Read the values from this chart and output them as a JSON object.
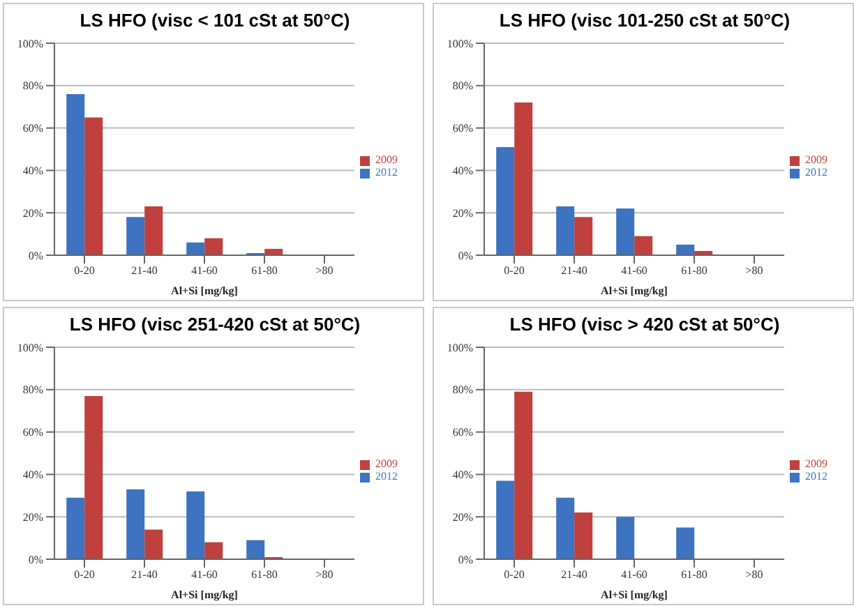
{
  "chart_data": [
    {
      "type": "bar",
      "title": "LS HFO (visc < 101 cSt at 50°C)",
      "xlabel": "Al+Si [mg/kg]",
      "categories": [
        "0-20",
        "21-40",
        "41-60",
        "61-80",
        ">80"
      ],
      "series": [
        {
          "name": "2012",
          "color": "#3d73c0",
          "values": [
            76,
            18,
            6,
            1,
            0
          ]
        },
        {
          "name": "2009",
          "color": "#c0403d",
          "values": [
            65,
            23,
            8,
            3,
            0
          ]
        }
      ],
      "ylim": [
        0,
        100
      ],
      "yticks": [
        {
          "value": 0,
          "label": "0%"
        },
        {
          "value": 20,
          "label": "20%"
        },
        {
          "value": 40,
          "label": "40%"
        },
        {
          "value": 60,
          "label": "60%"
        },
        {
          "value": 80,
          "label": "80%"
        },
        {
          "value": 100,
          "label": "100%"
        }
      ],
      "grid": "y",
      "legend": "right"
    },
    {
      "type": "bar",
      "title": "LS HFO (visc 101-250 cSt at 50°C)",
      "xlabel": "Al+Si [mg/kg]",
      "categories": [
        "0-20",
        "21-40",
        "41-60",
        "61-80",
        ">80"
      ],
      "series": [
        {
          "name": "2012",
          "color": "#3d73c0",
          "values": [
            51,
            23,
            22,
            5,
            0
          ]
        },
        {
          "name": "2009",
          "color": "#c0403d",
          "values": [
            72,
            18,
            9,
            2,
            0
          ]
        }
      ],
      "ylim": [
        0,
        100
      ],
      "yticks": [
        {
          "value": 0,
          "label": "0%"
        },
        {
          "value": 20,
          "label": "20%"
        },
        {
          "value": 40,
          "label": "40%"
        },
        {
          "value": 60,
          "label": "60%"
        },
        {
          "value": 80,
          "label": "80%"
        },
        {
          "value": 100,
          "label": "100%"
        }
      ],
      "grid": "y",
      "legend": "right"
    },
    {
      "type": "bar",
      "title": "LS HFO (visc 251-420 cSt at 50°C)",
      "xlabel": "Al+Si [mg/kg]",
      "categories": [
        "0-20",
        "21-40",
        "41-60",
        "61-80",
        ">80"
      ],
      "series": [
        {
          "name": "2012",
          "color": "#3d73c0",
          "values": [
            29,
            33,
            32,
            9,
            0
          ]
        },
        {
          "name": "2009",
          "color": "#c0403d",
          "values": [
            77,
            14,
            8,
            1,
            0
          ]
        }
      ],
      "ylim": [
        0,
        100
      ],
      "yticks": [
        {
          "value": 0,
          "label": "0%"
        },
        {
          "value": 20,
          "label": "20%"
        },
        {
          "value": 40,
          "label": "40%"
        },
        {
          "value": 60,
          "label": "60%"
        },
        {
          "value": 80,
          "label": "80%"
        },
        {
          "value": 100,
          "label": "100%"
        }
      ],
      "grid": "y",
      "legend": "right"
    },
    {
      "type": "bar",
      "title": "LS HFO (visc > 420 cSt at 50°C)",
      "xlabel": "Al+Si [mg/kg]",
      "categories": [
        "0-20",
        "21-40",
        "41-60",
        "61-80",
        ">80"
      ],
      "series": [
        {
          "name": "2012",
          "color": "#3d73c0",
          "values": [
            37,
            29,
            20,
            15,
            0
          ]
        },
        {
          "name": "2009",
          "color": "#c0403d",
          "values": [
            79,
            22,
            0,
            0,
            0
          ]
        }
      ],
      "ylim": [
        0,
        100
      ],
      "yticks": [
        {
          "value": 0,
          "label": "0%"
        },
        {
          "value": 20,
          "label": "20%"
        },
        {
          "value": 40,
          "label": "40%"
        },
        {
          "value": 60,
          "label": "60%"
        },
        {
          "value": 80,
          "label": "80%"
        },
        {
          "value": 100,
          "label": "100%"
        }
      ],
      "grid": "y",
      "legend": "right"
    }
  ]
}
